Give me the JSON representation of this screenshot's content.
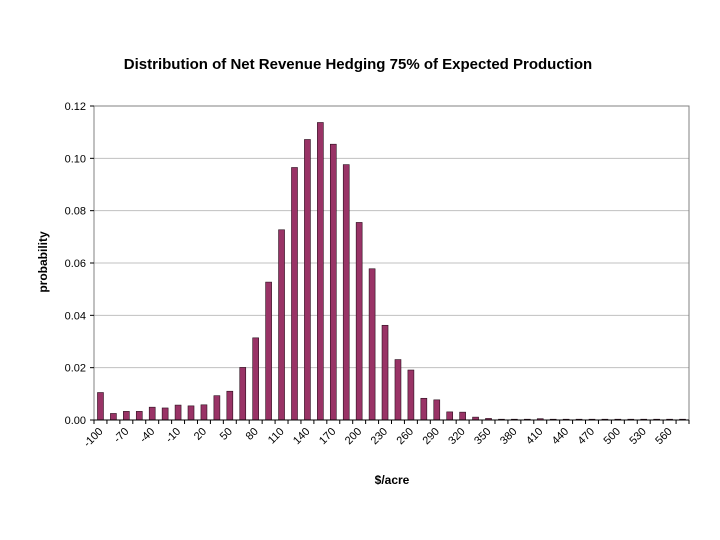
{
  "colors": {
    "bar_fill": "#993366",
    "bar_stroke": "#2a0f1d",
    "grid": "#c0c0c0",
    "frame": "#808080",
    "background": "#ffffff"
  },
  "chart_data": {
    "type": "bar",
    "title": "Distribution of Net Revenue Hedging 75% of Expected Production",
    "xlabel": "$/acre",
    "ylabel": "probability",
    "ylim": [
      0,
      0.12
    ],
    "yticks": [
      "0.00",
      "0.02",
      "0.04",
      "0.06",
      "0.08",
      "0.10",
      "0.12"
    ],
    "grid": true,
    "legend": "none",
    "categories": [
      -100,
      -85,
      -70,
      -55,
      -40,
      -25,
      -10,
      5,
      20,
      35,
      50,
      65,
      80,
      95,
      110,
      125,
      140,
      155,
      170,
      185,
      200,
      215,
      230,
      245,
      260,
      275,
      290,
      305,
      320,
      335,
      350,
      365,
      380,
      395,
      410,
      425,
      440,
      455,
      470,
      485,
      500,
      515,
      530,
      545,
      560,
      575
    ],
    "tick_labels": [
      "-100",
      "-70",
      "-40",
      "-10",
      "20",
      "50",
      "80",
      "110",
      "140",
      "170",
      "200",
      "230",
      "260",
      "290",
      "320",
      "350",
      "380",
      "410",
      "440",
      "470",
      "500",
      "530",
      "560"
    ],
    "values": [
      0.0105,
      0.0025,
      0.0033,
      0.0033,
      0.0049,
      0.0046,
      0.0057,
      0.0054,
      0.0058,
      0.0093,
      0.011,
      0.0201,
      0.0314,
      0.0527,
      0.0727,
      0.0965,
      0.1072,
      0.1137,
      0.1054,
      0.0976,
      0.0755,
      0.0578,
      0.0362,
      0.0231,
      0.0191,
      0.0083,
      0.0077,
      0.0031,
      0.003,
      0.0011,
      0.0006,
      0.0003,
      0.0002,
      0.0002,
      0.0005,
      0.0001,
      0.0001,
      0.0001,
      0.0001,
      0.0001,
      0.0001,
      0.0001,
      0.0001,
      0.0001,
      0.0001,
      0.0001
    ]
  }
}
